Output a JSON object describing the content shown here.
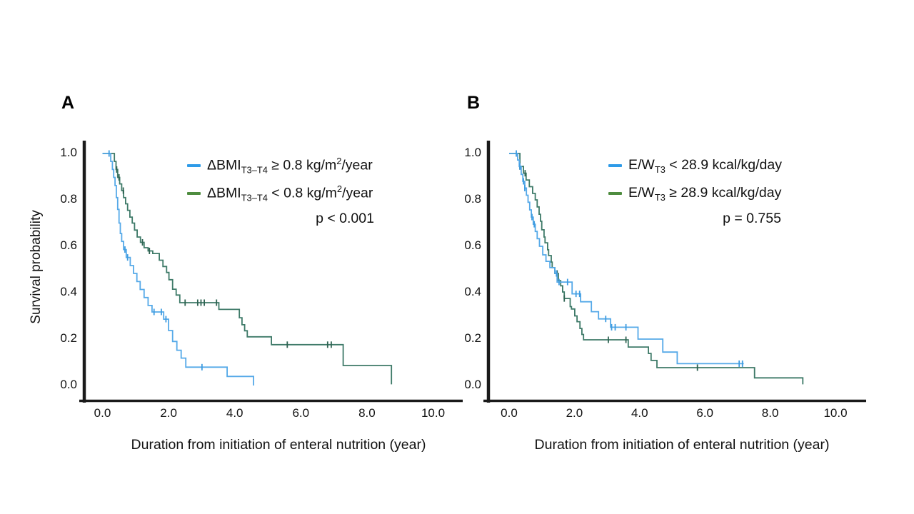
{
  "figure": {
    "y_axis_title": "Survival probability",
    "x_axis_title": "Duration from initiation of enteral nutrition (year)",
    "y_ticks": [
      "1.0",
      "0.8",
      "0.6",
      "0.4",
      "0.2",
      "0.0"
    ],
    "x_ticks": [
      "0.0",
      "2.0",
      "4.0",
      "6.0",
      "8.0",
      "10.0"
    ],
    "colors": {
      "axis": "#1a1a1a",
      "blue_curve": "#55a9e8",
      "blue_censor": "#3f9ce0",
      "green_curve": "#3e7a68",
      "green_censor": "#2f6352",
      "blue_legend": "#2e9be8",
      "green_legend": "#4e8c3f"
    }
  },
  "panels": [
    {
      "label": "A",
      "legend": {
        "items": [
          {
            "color_key": "blue",
            "parts": [
              {
                "t": "ΔBMI"
              },
              {
                "sub": "T3–T4"
              },
              {
                "t": " ≥ 0.8 kg/m"
              },
              {
                "sup": "2"
              },
              {
                "t": "/year"
              }
            ]
          },
          {
            "color_key": "green",
            "parts": [
              {
                "t": "ΔBMI"
              },
              {
                "sub": "T3–T4"
              },
              {
                "t": " < 0.8 kg/m"
              },
              {
                "sup": "2"
              },
              {
                "t": "/year"
              }
            ]
          }
        ],
        "p_value": "p < 0.001"
      },
      "chart_data": {
        "type": "line",
        "subtype": "kaplan-meier-step",
        "xlabel": "Duration from initiation of enteral nutrition (year)",
        "ylabel": "Survival probability",
        "xlim": [
          0,
          10
        ],
        "ylim": [
          0,
          1
        ],
        "series": [
          {
            "name": "ΔBMI T3–T4 ≥ 0.8 kg/m2/year",
            "color_key": "blue",
            "steps": [
              [
                0,
                1.0
              ],
              [
                0.25,
                0.966
              ],
              [
                0.3,
                0.931
              ],
              [
                0.34,
                0.897
              ],
              [
                0.38,
                0.862
              ],
              [
                0.42,
                0.81
              ],
              [
                0.46,
                0.759
              ],
              [
                0.5,
                0.7
              ],
              [
                0.54,
                0.655
              ],
              [
                0.58,
                0.621
              ],
              [
                0.64,
                0.586
              ],
              [
                0.72,
                0.552
              ],
              [
                0.84,
                0.517
              ],
              [
                0.94,
                0.483
              ],
              [
                1.04,
                0.448
              ],
              [
                1.14,
                0.414
              ],
              [
                1.26,
                0.379
              ],
              [
                1.38,
                0.345
              ],
              [
                1.5,
                0.317
              ],
              [
                1.85,
                0.286
              ],
              [
                2.0,
                0.237
              ],
              [
                2.12,
                0.19
              ],
              [
                2.25,
                0.152
              ],
              [
                2.38,
                0.118
              ],
              [
                2.52,
                0.079
              ],
              [
                3.77,
                0.039
              ],
              [
                4.57,
                0.0
              ]
            ],
            "censor_times": [
              0.2,
              0.68,
              0.76,
              1.56,
              1.78,
              1.92,
              3.01
            ]
          },
          {
            "name": "ΔBMI T3–T4 < 0.8 kg/m2/year",
            "color_key": "green",
            "steps": [
              [
                0,
                1.0
              ],
              [
                0.36,
                0.966
              ],
              [
                0.41,
                0.931
              ],
              [
                0.46,
                0.897
              ],
              [
                0.52,
                0.869
              ],
              [
                0.58,
                0.84
              ],
              [
                0.64,
                0.81
              ],
              [
                0.7,
                0.783
              ],
              [
                0.76,
                0.755
              ],
              [
                0.83,
                0.726
              ],
              [
                0.9,
                0.7
              ],
              [
                0.97,
                0.67
              ],
              [
                1.05,
                0.64
              ],
              [
                1.15,
                0.617
              ],
              [
                1.26,
                0.594
              ],
              [
                1.38,
                0.58
              ],
              [
                1.52,
                0.569
              ],
              [
                1.72,
                0.54
              ],
              [
                1.83,
                0.513
              ],
              [
                1.94,
                0.487
              ],
              [
                2.01,
                0.456
              ],
              [
                2.12,
                0.415
              ],
              [
                2.23,
                0.39
              ],
              [
                2.34,
                0.357
              ],
              [
                3.52,
                0.328
              ],
              [
                4.14,
                0.292
              ],
              [
                4.22,
                0.262
              ],
              [
                4.3,
                0.236
              ],
              [
                4.38,
                0.21
              ],
              [
                5.11,
                0.176
              ],
              [
                7.28,
                0.086
              ],
              [
                8.74,
                0.005
              ]
            ],
            "censor_times": [
              0.43,
              0.5,
              0.63,
              1.21,
              1.42,
              2.5,
              2.88,
              2.98,
              3.08,
              3.45,
              5.59,
              6.81,
              6.92
            ]
          }
        ]
      }
    },
    {
      "label": "B",
      "legend": {
        "items": [
          {
            "color_key": "blue",
            "parts": [
              {
                "t": "E/W"
              },
              {
                "sub": "T3"
              },
              {
                "t": " < 28.9 kcal/kg/day"
              }
            ]
          },
          {
            "color_key": "green",
            "parts": [
              {
                "t": "E/W"
              },
              {
                "sub": "T3"
              },
              {
                "t": " ≥ 28.9 kcal/kg/day"
              }
            ]
          }
        ],
        "p_value": "p = 0.755"
      },
      "chart_data": {
        "type": "line",
        "subtype": "kaplan-meier-step",
        "xlabel": "Duration from initiation of enteral nutrition (year)",
        "ylabel": "Survival probability",
        "xlim": [
          0,
          10
        ],
        "ylim": [
          0,
          1
        ],
        "series": [
          {
            "name": "E/W T3 < 28.9 kcal/kg/day",
            "color_key": "blue",
            "steps": [
              [
                0,
                1.0
              ],
              [
                0.26,
                0.972
              ],
              [
                0.31,
                0.944
              ],
              [
                0.37,
                0.91
              ],
              [
                0.42,
                0.88
              ],
              [
                0.48,
                0.851
              ],
              [
                0.53,
                0.82
              ],
              [
                0.58,
                0.79
              ],
              [
                0.63,
                0.757
              ],
              [
                0.68,
                0.726
              ],
              [
                0.74,
                0.695
              ],
              [
                0.8,
                0.664
              ],
              [
                0.86,
                0.633
              ],
              [
                0.93,
                0.6
              ],
              [
                1.03,
                0.563
              ],
              [
                1.13,
                0.535
              ],
              [
                1.25,
                0.508
              ],
              [
                1.4,
                0.483
              ],
              [
                1.47,
                0.446
              ],
              [
                1.93,
                0.395
              ],
              [
                2.19,
                0.361
              ],
              [
                2.52,
                0.318
              ],
              [
                2.74,
                0.287
              ],
              [
                3.11,
                0.251
              ],
              [
                3.95,
                0.2
              ],
              [
                4.71,
                0.144
              ],
              [
                5.15,
                0.094
              ],
              [
                7.19,
                0.094
              ]
            ],
            "censor_times": [
              0.22,
              0.33,
              0.44,
              0.48,
              0.7,
              0.77,
              1.45,
              1.53,
              1.79,
              2.05,
              2.16,
              2.96,
              3.14,
              3.25,
              3.58,
              7.05,
              7.15
            ]
          },
          {
            "name": "E/W T3 ≥ 28.9 kcal/kg/day",
            "color_key": "green",
            "steps": [
              [
                0,
                1.0
              ],
              [
                0.33,
                0.944
              ],
              [
                0.44,
                0.915
              ],
              [
                0.52,
                0.886
              ],
              [
                0.62,
                0.857
              ],
              [
                0.72,
                0.828
              ],
              [
                0.8,
                0.8
              ],
              [
                0.86,
                0.77
              ],
              [
                0.92,
                0.738
              ],
              [
                0.96,
                0.708
              ],
              [
                1.0,
                0.671
              ],
              [
                1.07,
                0.64
              ],
              [
                1.1,
                0.615
              ],
              [
                1.18,
                0.585
              ],
              [
                1.21,
                0.56
              ],
              [
                1.29,
                0.532
              ],
              [
                1.32,
                0.508
              ],
              [
                1.4,
                0.483
              ],
              [
                1.51,
                0.452
              ],
              [
                1.58,
                0.43
              ],
              [
                1.64,
                0.403
              ],
              [
                1.69,
                0.375
              ],
              [
                1.87,
                0.34
              ],
              [
                1.91,
                0.33
              ],
              [
                2.01,
                0.3
              ],
              [
                2.08,
                0.275
              ],
              [
                2.17,
                0.246
              ],
              [
                2.23,
                0.22
              ],
              [
                2.28,
                0.197
              ],
              [
                3.65,
                0.166
              ],
              [
                4.27,
                0.138
              ],
              [
                4.35,
                0.108
              ],
              [
                4.53,
                0.077
              ],
              [
                7.52,
                0.033
              ],
              [
                9.0,
                0.005
              ]
            ],
            "censor_times": [
              0.33,
              0.49,
              1.47,
              1.69,
              3.04,
              3.58,
              5.77
            ]
          }
        ]
      }
    }
  ]
}
